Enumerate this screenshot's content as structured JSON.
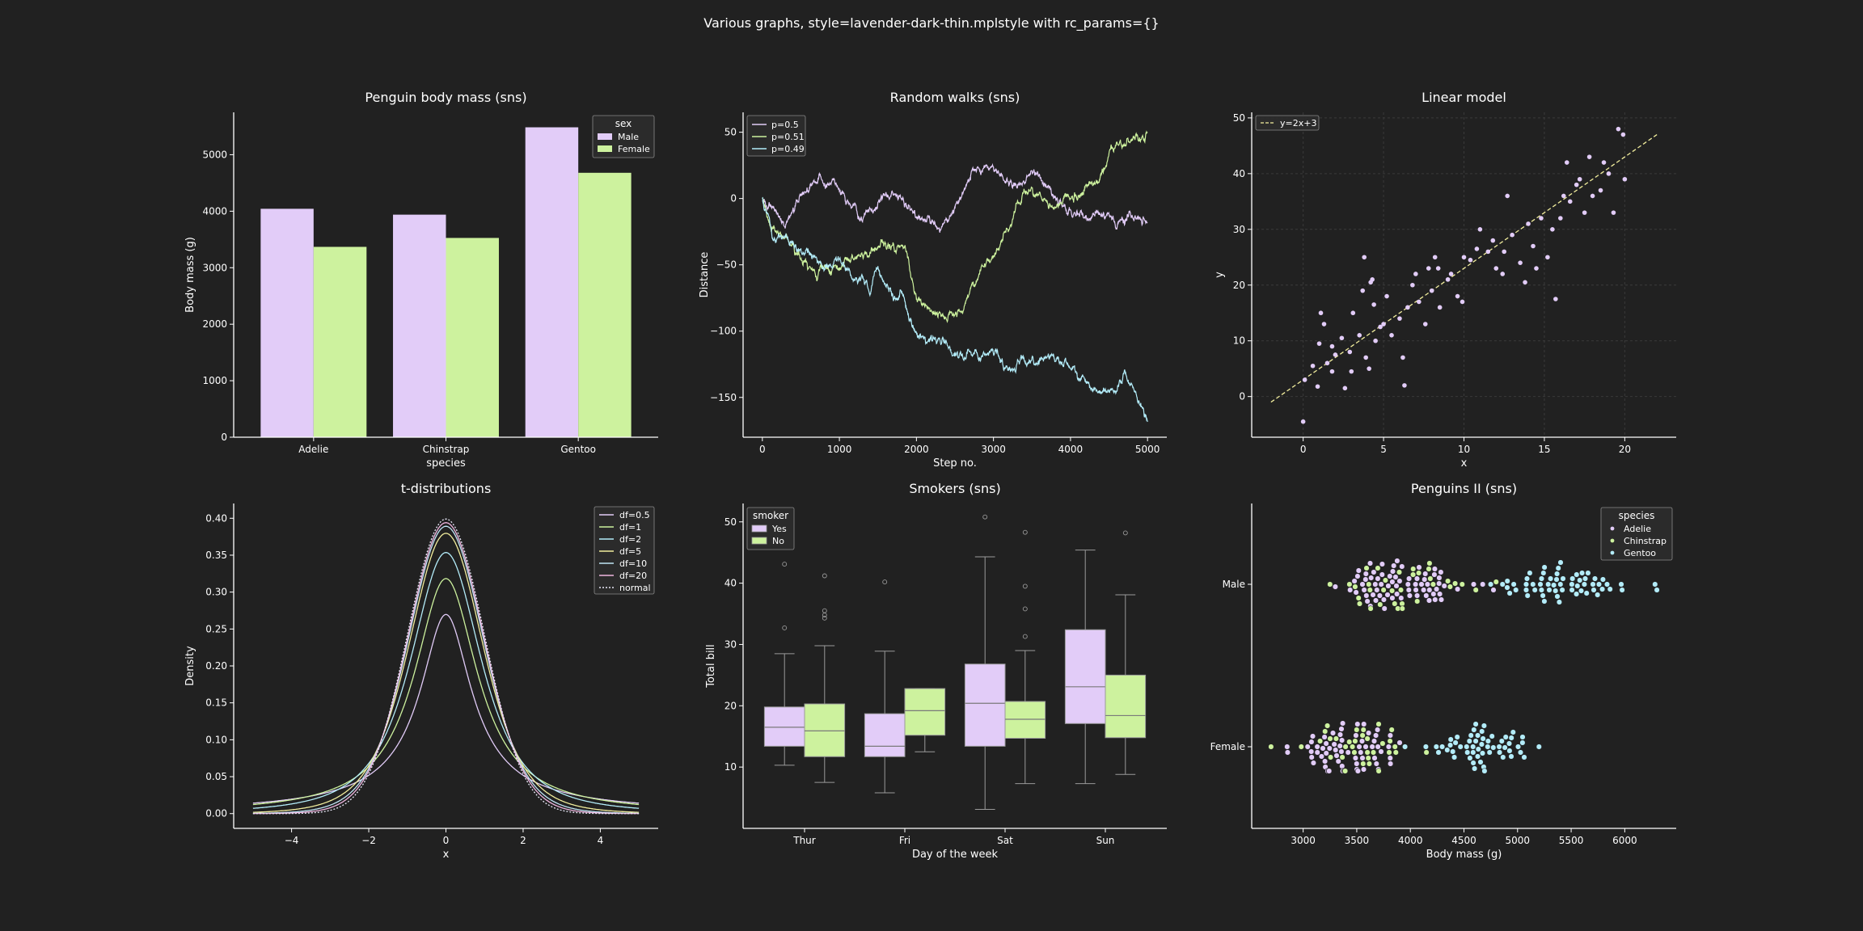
{
  "figure": {
    "title": "Various graphs, style=lavender-dark-thin.mplstyle with rc_params={}",
    "background": "#212121",
    "foreground": "#ffffff",
    "grid_color": "#3a3a3a"
  },
  "palette": {
    "lavender": "#e2ccf8",
    "green": "#cdf29e",
    "cyan": "#b3ecf9",
    "yellow": "#f2ee9d",
    "pink": "#f0b6e0"
  },
  "chart_data": [
    {
      "id": "penguin-body-mass",
      "type": "bar",
      "title": "Penguin body mass (sns)",
      "xlabel": "species",
      "ylabel": "Body mass (g)",
      "categories": [
        "Adelie",
        "Chinstrap",
        "Gentoo"
      ],
      "ylim": [
        0,
        5750
      ],
      "yticks": [
        0,
        1000,
        2000,
        3000,
        4000,
        5000
      ],
      "legend": {
        "title": "sex",
        "placement": "top-right"
      },
      "series": [
        {
          "name": "Male",
          "color": "#e2ccf8",
          "values": [
            4043,
            3939,
            5485
          ]
        },
        {
          "name": "Female",
          "color": "#cdf29e",
          "values": [
            3369,
            3527,
            4680
          ]
        }
      ]
    },
    {
      "id": "random-walks",
      "type": "line",
      "title": "Random walks (sns)",
      "xlabel": "Step no.",
      "ylabel": "Distance",
      "xlim": [
        -250,
        5250
      ],
      "ylim": [
        -180,
        65
      ],
      "xticks": [
        0,
        1000,
        2000,
        3000,
        4000,
        5000
      ],
      "yticks": [
        -150,
        -100,
        -50,
        0,
        50
      ],
      "legend": {
        "placement": "top-left"
      },
      "series": [
        {
          "name": "p=0.5",
          "color": "#e2ccf8",
          "anchors": [
            [
              0,
              0
            ],
            [
              150,
              -12
            ],
            [
              300,
              -18
            ],
            [
              500,
              3
            ],
            [
              700,
              13
            ],
            [
              900,
              12
            ],
            [
              1100,
              0
            ],
            [
              1300,
              -12
            ],
            [
              1500,
              -5
            ],
            [
              1700,
              6
            ],
            [
              1900,
              -5
            ],
            [
              2100,
              -15
            ],
            [
              2300,
              -24
            ],
            [
              2500,
              -8
            ],
            [
              2700,
              12
            ],
            [
              2900,
              26
            ],
            [
              3100,
              18
            ],
            [
              3300,
              8
            ],
            [
              3500,
              20
            ],
            [
              3700,
              10
            ],
            [
              3900,
              -3
            ],
            [
              4000,
              -8
            ],
            [
              4200,
              -13
            ],
            [
              4400,
              -12
            ],
            [
              4600,
              -17
            ],
            [
              4800,
              -12
            ],
            [
              5000,
              -20
            ]
          ]
        },
        {
          "name": "p=0.51",
          "color": "#cdf29e",
          "anchors": [
            [
              0,
              0
            ],
            [
              100,
              -22
            ],
            [
              300,
              -30
            ],
            [
              500,
              -45
            ],
            [
              700,
              -55
            ],
            [
              900,
              -50
            ],
            [
              1100,
              -45
            ],
            [
              1300,
              -48
            ],
            [
              1500,
              -38
            ],
            [
              1700,
              -32
            ],
            [
              1850,
              -35
            ],
            [
              2000,
              -75
            ],
            [
              2200,
              -85
            ],
            [
              2400,
              -90
            ],
            [
              2600,
              -80
            ],
            [
              2800,
              -58
            ],
            [
              3000,
              -38
            ],
            [
              3100,
              -30
            ],
            [
              3200,
              -22
            ],
            [
              3400,
              5
            ],
            [
              3600,
              0
            ],
            [
              3800,
              -5
            ],
            [
              4000,
              0
            ],
            [
              4200,
              8
            ],
            [
              4400,
              20
            ],
            [
              4600,
              40
            ],
            [
              4800,
              42
            ],
            [
              5000,
              48
            ]
          ]
        },
        {
          "name": "p=0.49",
          "color": "#b3ecf9",
          "anchors": [
            [
              0,
              0
            ],
            [
              150,
              -30
            ],
            [
              300,
              -25
            ],
            [
              500,
              -38
            ],
            [
              700,
              -50
            ],
            [
              900,
              -55
            ],
            [
              1000,
              -48
            ],
            [
              1200,
              -60
            ],
            [
              1400,
              -70
            ],
            [
              1500,
              -50
            ],
            [
              1600,
              -62
            ],
            [
              1700,
              -78
            ],
            [
              1800,
              -68
            ],
            [
              1900,
              -90
            ],
            [
              2000,
              -100
            ],
            [
              2200,
              -108
            ],
            [
              2400,
              -112
            ],
            [
              2600,
              -118
            ],
            [
              2800,
              -120
            ],
            [
              3000,
              -112
            ],
            [
              3200,
              -130
            ],
            [
              3400,
              -125
            ],
            [
              3600,
              -120
            ],
            [
              3800,
              -122
            ],
            [
              4000,
              -130
            ],
            [
              4200,
              -138
            ],
            [
              4400,
              -145
            ],
            [
              4600,
              -150
            ],
            [
              4700,
              -130
            ],
            [
              4800,
              -140
            ],
            [
              5000,
              -168
            ]
          ]
        }
      ]
    },
    {
      "id": "linear-model",
      "type": "scatter",
      "title": "Linear model",
      "xlabel": "x",
      "ylabel": "y",
      "xlim": [
        -3.2,
        23.2
      ],
      "ylim": [
        -7.3,
        51
      ],
      "xticks": [
        0,
        5,
        10,
        15,
        20
      ],
      "yticks": [
        0,
        10,
        20,
        30,
        40,
        50
      ],
      "grid": true,
      "legend": {
        "placement": "top-left"
      },
      "fit_line": {
        "name": "y=2x+3",
        "color": "#f2ee9d",
        "slope": 2,
        "intercept": 3,
        "x_range": [
          -2,
          22
        ]
      },
      "points_color": "#e2ccf8",
      "points": [
        [
          0,
          -4.5
        ],
        [
          0.1,
          3
        ],
        [
          0.6,
          5.5
        ],
        [
          0.9,
          1.8
        ],
        [
          1,
          9.5
        ],
        [
          1.1,
          15
        ],
        [
          1.3,
          13
        ],
        [
          1.5,
          6
        ],
        [
          1.8,
          4.5
        ],
        [
          1.8,
          9
        ],
        [
          2,
          7.5
        ],
        [
          2.4,
          10.5
        ],
        [
          2.6,
          1.5
        ],
        [
          2.9,
          8
        ],
        [
          3,
          4.5
        ],
        [
          3.1,
          15
        ],
        [
          3.5,
          11
        ],
        [
          3.7,
          19
        ],
        [
          3.8,
          25
        ],
        [
          3.9,
          7
        ],
        [
          4.1,
          5
        ],
        [
          4.2,
          20.5
        ],
        [
          4.3,
          21
        ],
        [
          4.4,
          16.5
        ],
        [
          4.5,
          10
        ],
        [
          4.8,
          12.5
        ],
        [
          5,
          13
        ],
        [
          5.2,
          18
        ],
        [
          5.5,
          11
        ],
        [
          6,
          14
        ],
        [
          6.2,
          7
        ],
        [
          6.3,
          2
        ],
        [
          6.5,
          16
        ],
        [
          6.8,
          20
        ],
        [
          7,
          22
        ],
        [
          7.2,
          17
        ],
        [
          7.6,
          13
        ],
        [
          7.8,
          23
        ],
        [
          8,
          19
        ],
        [
          8.2,
          25
        ],
        [
          8.4,
          23
        ],
        [
          8.5,
          16
        ],
        [
          9,
          21
        ],
        [
          9.2,
          22
        ],
        [
          9.6,
          18
        ],
        [
          9.9,
          17
        ],
        [
          10,
          25
        ],
        [
          10.4,
          24.5
        ],
        [
          10.8,
          26.5
        ],
        [
          11,
          30
        ],
        [
          11.5,
          26
        ],
        [
          11.8,
          28
        ],
        [
          12,
          23
        ],
        [
          12.4,
          22
        ],
        [
          12.5,
          26
        ],
        [
          12.7,
          36
        ],
        [
          13,
          29
        ],
        [
          13.5,
          24
        ],
        [
          13.8,
          20.5
        ],
        [
          14,
          31
        ],
        [
          14.3,
          27
        ],
        [
          14.5,
          23
        ],
        [
          14.8,
          32
        ],
        [
          15.2,
          25
        ],
        [
          15.5,
          30
        ],
        [
          15.7,
          17.5
        ],
        [
          16,
          32
        ],
        [
          16.2,
          36
        ],
        [
          16.4,
          42
        ],
        [
          16.6,
          35
        ],
        [
          17,
          38
        ],
        [
          17.2,
          39
        ],
        [
          17.5,
          33
        ],
        [
          17.8,
          43
        ],
        [
          18,
          36
        ],
        [
          18.5,
          37
        ],
        [
          18.7,
          42
        ],
        [
          19,
          40
        ],
        [
          19.3,
          33
        ],
        [
          19.6,
          48
        ],
        [
          19.9,
          47
        ],
        [
          20,
          39
        ]
      ]
    },
    {
      "id": "t-distributions",
      "type": "line",
      "title": "t-distributions",
      "xlabel": "x",
      "ylabel": "Density",
      "xlim": [
        -5.5,
        5.5
      ],
      "ylim": [
        -0.02,
        0.42
      ],
      "xticks": [
        -4,
        -2,
        0,
        2,
        4
      ],
      "yticks": [
        0.0,
        0.05,
        0.1,
        0.15,
        0.2,
        0.25,
        0.3,
        0.35,
        0.4
      ],
      "x_range": [
        -5,
        5
      ],
      "legend": {
        "placement": "top-right"
      },
      "series": [
        {
          "name": "df=0.5",
          "df": 0.5,
          "color": "#e2ccf8",
          "dashed": false
        },
        {
          "name": "df=1",
          "df": 1,
          "color": "#cdf29e",
          "dashed": false
        },
        {
          "name": "df=2",
          "df": 2,
          "color": "#b3ecf9",
          "dashed": false
        },
        {
          "name": "df=5",
          "df": 5,
          "color": "#f2ee9d",
          "dashed": false
        },
        {
          "name": "df=10",
          "df": 10,
          "color": "#bfe4f5",
          "dashed": false
        },
        {
          "name": "df=20",
          "df": 20,
          "color": "#f0b6e0",
          "dashed": false
        },
        {
          "name": "normal",
          "df": 0,
          "color": "#e8e8f8",
          "dashed": true
        }
      ]
    },
    {
      "id": "smokers",
      "type": "box",
      "title": "Smokers (sns)",
      "xlabel": "Day of the week",
      "ylabel": "Total bill",
      "categories": [
        "Thur",
        "Fri",
        "Sat",
        "Sun"
      ],
      "ylim": [
        0,
        53
      ],
      "yticks": [
        10,
        20,
        30,
        40,
        50
      ],
      "legend": {
        "title": "smoker",
        "placement": "top-left"
      },
      "series": [
        {
          "name": "Yes",
          "color": "#e2ccf8",
          "boxes": [
            {
              "whislo": 10.3,
              "q1": 13.4,
              "med": 16.5,
              "q3": 19.8,
              "whishi": 28.5,
              "fliers": [
                32.7,
                43.1
              ]
            },
            {
              "whislo": 5.8,
              "q1": 11.7,
              "med": 13.4,
              "q3": 18.7,
              "whishi": 28.9,
              "fliers": [
                40.2
              ]
            },
            {
              "whislo": 3.1,
              "q1": 13.4,
              "med": 20.4,
              "q3": 26.8,
              "whishi": 44.3,
              "fliers": [
                50.8
              ]
            },
            {
              "whislo": 7.3,
              "q1": 17.1,
              "med": 23.1,
              "q3": 32.4,
              "whishi": 45.4,
              "fliers": []
            }
          ]
        },
        {
          "name": "No",
          "color": "#cdf29e",
          "boxes": [
            {
              "whislo": 7.5,
              "q1": 11.7,
              "med": 15.9,
              "q3": 20.3,
              "whishi": 29.8,
              "fliers": [
                34.3,
                34.8,
                35.5,
                41.2
              ]
            },
            {
              "whislo": 12.5,
              "q1": 15.2,
              "med": 19.2,
              "q3": 22.8,
              "whishi": 22.8,
              "fliers": []
            },
            {
              "whislo": 7.3,
              "q1": 14.7,
              "med": 17.8,
              "q3": 20.7,
              "whishi": 29.0,
              "fliers": [
                31.3,
                35.8,
                39.5,
                48.3
              ]
            },
            {
              "whislo": 8.8,
              "q1": 14.8,
              "med": 18.4,
              "q3": 25.0,
              "whishi": 38.1,
              "fliers": [
                48.2
              ]
            }
          ]
        }
      ]
    },
    {
      "id": "penguins-ii",
      "type": "swarm",
      "title": "Penguins II (sns)",
      "xlabel": "Body mass (g)",
      "ylabel": "",
      "categories": [
        "Male",
        "Female"
      ],
      "xlim": [
        2520,
        6480
      ],
      "xticks": [
        3000,
        3500,
        4000,
        4500,
        5000,
        5500,
        6000
      ],
      "legend": {
        "title": "species",
        "placement": "top-right"
      },
      "series": [
        {
          "name": "Adelie",
          "color": "#e2ccf8"
        },
        {
          "name": "Chinstrap",
          "color": "#cdf29e"
        },
        {
          "name": "Gentoo",
          "color": "#b3ecf9"
        }
      ],
      "groups": [
        {
          "category": "Male",
          "species": "Adelie",
          "min": 3300,
          "max": 4775,
          "center": 3900,
          "spread": 290,
          "n": 73
        },
        {
          "category": "Male",
          "species": "Chinstrap",
          "min": 3250,
          "max": 4800,
          "center": 3950,
          "spread": 330,
          "n": 34
        },
        {
          "category": "Male",
          "species": "Gentoo",
          "min": 4750,
          "max": 6300,
          "center": 5450,
          "spread": 300,
          "n": 61
        },
        {
          "category": "Female",
          "species": "Adelie",
          "min": 2850,
          "max": 3900,
          "center": 3350,
          "spread": 230,
          "n": 73
        },
        {
          "category": "Female",
          "species": "Chinstrap",
          "min": 2700,
          "max": 4150,
          "center": 3500,
          "spread": 280,
          "n": 34
        },
        {
          "category": "Female",
          "species": "Gentoo",
          "min": 3950,
          "max": 5200,
          "center": 4650,
          "spread": 230,
          "n": 58
        }
      ]
    }
  ]
}
